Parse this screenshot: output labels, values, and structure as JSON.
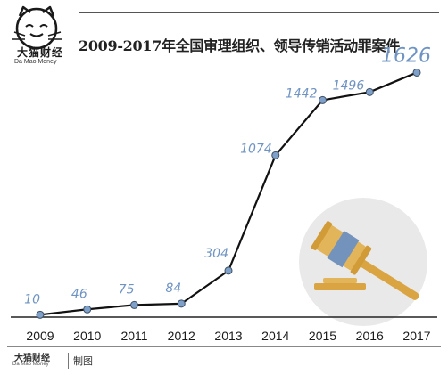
{
  "brand": {
    "name": "大猫财经",
    "sub": "Da Mao Money"
  },
  "footer": {
    "brand": "大猫财经",
    "sub": "Da Mao Money",
    "credit": "制图"
  },
  "colors": {
    "line": "#111111",
    "point": "#7fa0c8",
    "label": "#6f94c3",
    "axis": "#222222",
    "tick_text": "#1a1a1a"
  },
  "chart_data": {
    "type": "line",
    "title": "2009-2017年全国审理组织、领导传销活动罪案件",
    "xlabel": "",
    "ylabel": "",
    "categories": [
      "2009",
      "2010",
      "2011",
      "2012",
      "2013",
      "2014",
      "2015",
      "2016",
      "2017"
    ],
    "series": [
      {
        "values": [
          10,
          46,
          75,
          84,
          304,
          1074,
          1442,
          1496,
          1626
        ]
      }
    ],
    "ylim": [
      0,
      1700
    ],
    "grid": false,
    "legend": "none"
  }
}
